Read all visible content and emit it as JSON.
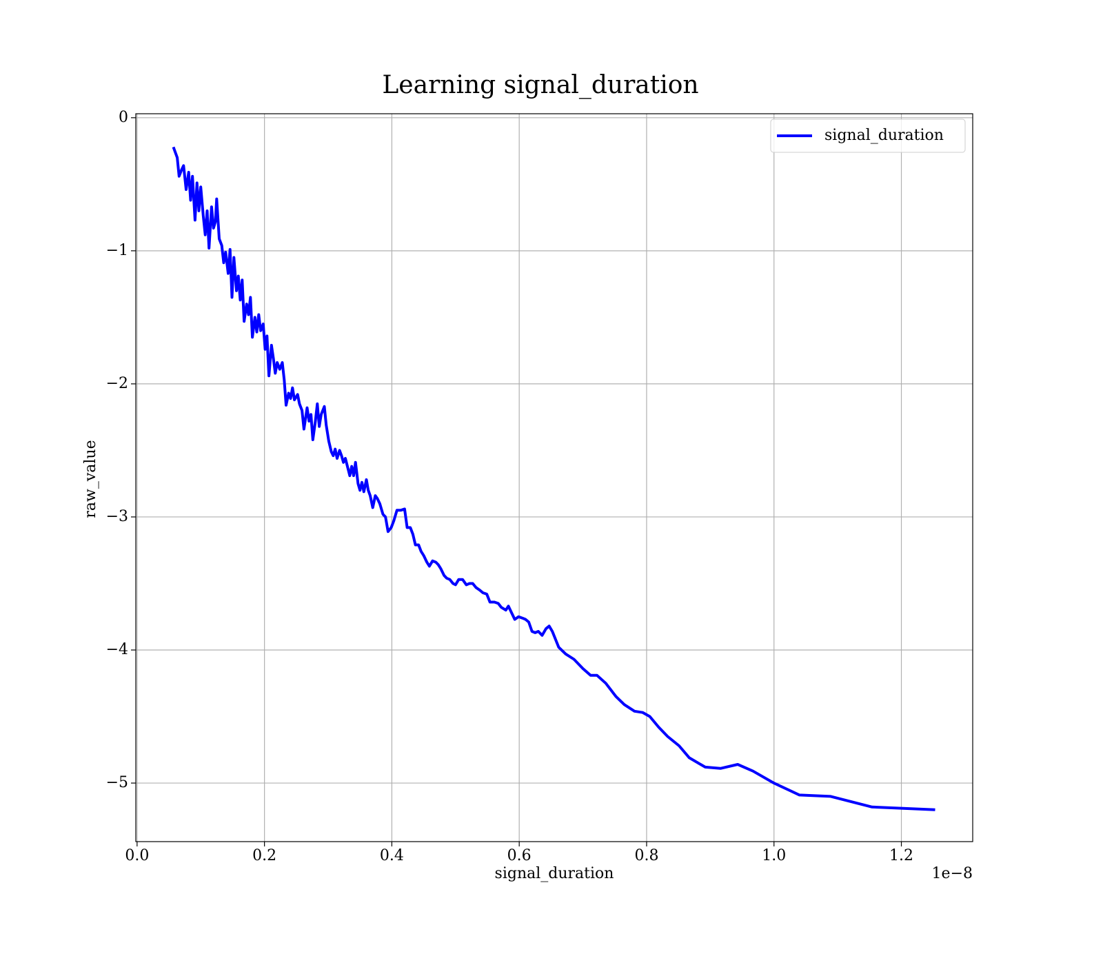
{
  "chart_data": {
    "type": "line",
    "title": "Learning signal_duration",
    "x_label": "signal_duration",
    "y_label": "raw_value",
    "x_offset_label": "1e−8",
    "xlim": [
      -0.002,
      1.312
    ],
    "ylim": [
      -5.44,
      0.03
    ],
    "xticks": [
      {
        "value": 0,
        "label": "0.0"
      },
      0.2,
      0.4,
      0.6,
      0.8,
      {
        "value": 1,
        "label": "1.0"
      },
      1.2
    ],
    "yticks": [
      0,
      {
        "value": -1,
        "label": "−1"
      },
      {
        "value": -2,
        "label": "−2"
      },
      {
        "value": -3,
        "label": "−3"
      },
      {
        "value": -4,
        "label": "−4"
      },
      {
        "value": -5,
        "label": "−5"
      }
    ],
    "grid": true,
    "legend": "upper right",
    "x": [
      0.057,
      0.063,
      0.066,
      0.07,
      0.073,
      0.077,
      0.081,
      0.084,
      0.087,
      0.091,
      0.094,
      0.097,
      0.1,
      0.104,
      0.107,
      0.11,
      0.113,
      0.117,
      0.12,
      0.123,
      0.125,
      0.129,
      0.133,
      0.136,
      0.139,
      0.143,
      0.146,
      0.149,
      0.152,
      0.156,
      0.159,
      0.162,
      0.165,
      0.168,
      0.172,
      0.175,
      0.178,
      0.181,
      0.185,
      0.188,
      0.191,
      0.194,
      0.198,
      0.201,
      0.204,
      0.207,
      0.211,
      0.214,
      0.217,
      0.22,
      0.224,
      0.228,
      0.231,
      0.234,
      0.238,
      0.241,
      0.244,
      0.247,
      0.252,
      0.255,
      0.259,
      0.262,
      0.267,
      0.27,
      0.273,
      0.276,
      0.28,
      0.283,
      0.286,
      0.289,
      0.294,
      0.297,
      0.301,
      0.305,
      0.308,
      0.311,
      0.314,
      0.318,
      0.321,
      0.324,
      0.327,
      0.334,
      0.337,
      0.34,
      0.343,
      0.347,
      0.35,
      0.353,
      0.356,
      0.36,
      0.363,
      0.366,
      0.37,
      0.374,
      0.377,
      0.381,
      0.386,
      0.39,
      0.394,
      0.399,
      0.403,
      0.408,
      0.414,
      0.42,
      0.424,
      0.429,
      0.433,
      0.437,
      0.442,
      0.446,
      0.45,
      0.455,
      0.459,
      0.464,
      0.469,
      0.473,
      0.477,
      0.482,
      0.486,
      0.491,
      0.496,
      0.5,
      0.505,
      0.511,
      0.517,
      0.522,
      0.527,
      0.532,
      0.538,
      0.543,
      0.549,
      0.554,
      0.561,
      0.567,
      0.572,
      0.579,
      0.583,
      0.589,
      0.593,
      0.599,
      0.605,
      0.61,
      0.615,
      0.62,
      0.625,
      0.63,
      0.636,
      0.642,
      0.647,
      0.652,
      0.662,
      0.673,
      0.686,
      0.7,
      0.712,
      0.722,
      0.736,
      0.752,
      0.765,
      0.781,
      0.794,
      0.805,
      0.819,
      0.833,
      0.851,
      0.867,
      0.892,
      0.916,
      0.943,
      0.967,
      1.0,
      1.04,
      1.089,
      1.154,
      1.253
    ],
    "series": [
      {
        "name": "signal_duration",
        "color": "#0000ff",
        "values": [
          -0.22,
          -0.3,
          -0.44,
          -0.39,
          -0.36,
          -0.54,
          -0.41,
          -0.62,
          -0.44,
          -0.77,
          -0.49,
          -0.7,
          -0.52,
          -0.74,
          -0.88,
          -0.7,
          -0.98,
          -0.67,
          -0.83,
          -0.78,
          -0.61,
          -0.91,
          -0.96,
          -1.09,
          -1.01,
          -1.17,
          -0.99,
          -1.35,
          -1.05,
          -1.3,
          -1.19,
          -1.37,
          -1.22,
          -1.53,
          -1.4,
          -1.48,
          -1.35,
          -1.65,
          -1.5,
          -1.61,
          -1.48,
          -1.6,
          -1.55,
          -1.74,
          -1.64,
          -1.94,
          -1.71,
          -1.81,
          -1.92,
          -1.84,
          -1.89,
          -1.84,
          -1.97,
          -2.16,
          -2.07,
          -2.11,
          -2.03,
          -2.12,
          -2.08,
          -2.15,
          -2.2,
          -2.34,
          -2.18,
          -2.28,
          -2.23,
          -2.42,
          -2.28,
          -2.15,
          -2.32,
          -2.23,
          -2.17,
          -2.31,
          -2.43,
          -2.51,
          -2.54,
          -2.49,
          -2.56,
          -2.5,
          -2.54,
          -2.59,
          -2.56,
          -2.69,
          -2.62,
          -2.69,
          -2.59,
          -2.75,
          -2.8,
          -2.74,
          -2.81,
          -2.72,
          -2.8,
          -2.84,
          -2.93,
          -2.84,
          -2.86,
          -2.9,
          -2.98,
          -3.0,
          -3.11,
          -3.08,
          -3.03,
          -2.95,
          -2.95,
          -2.94,
          -3.08,
          -3.08,
          -3.13,
          -3.21,
          -3.21,
          -3.26,
          -3.29,
          -3.34,
          -3.37,
          -3.33,
          -3.34,
          -3.36,
          -3.39,
          -3.44,
          -3.46,
          -3.47,
          -3.5,
          -3.51,
          -3.47,
          -3.47,
          -3.51,
          -3.5,
          -3.5,
          -3.53,
          -3.55,
          -3.57,
          -3.58,
          -3.64,
          -3.64,
          -3.65,
          -3.68,
          -3.7,
          -3.67,
          -3.73,
          -3.77,
          -3.75,
          -3.76,
          -3.77,
          -3.79,
          -3.86,
          -3.87,
          -3.86,
          -3.89,
          -3.84,
          -3.82,
          -3.86,
          -3.98,
          -4.03,
          -4.07,
          -4.14,
          -4.19,
          -4.19,
          -4.25,
          -4.35,
          -4.41,
          -4.46,
          -4.47,
          -4.5,
          -4.58,
          -4.65,
          -4.72,
          -4.81,
          -4.88,
          -4.89,
          -4.86,
          -4.91,
          -5.0,
          -5.09,
          -5.1,
          -5.18,
          -5.2
        ]
      }
    ]
  }
}
